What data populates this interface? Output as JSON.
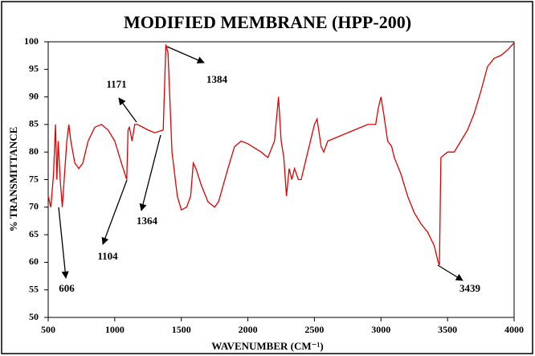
{
  "chart_data": {
    "type": "line",
    "title": "MODIFIED MEMBRANE (HPP-200)",
    "x_label": "WAVENUMBER (CM⁻¹)",
    "y_label": "% TRANSMITTANCE",
    "color": "#e00000",
    "x": [
      500,
      520,
      540,
      555,
      565,
      575,
      590,
      606,
      620,
      640,
      655,
      670,
      700,
      730,
      760,
      800,
      850,
      900,
      950,
      1000,
      1050,
      1090,
      1100,
      1110,
      1130,
      1150,
      1171,
      1250,
      1300,
      1364,
      1384,
      1400,
      1430,
      1470,
      1500,
      1540,
      1570,
      1590,
      1610,
      1650,
      1700,
      1750,
      1780,
      1850,
      1900,
      1950,
      2000,
      2100,
      2150,
      2200,
      2230,
      2250,
      2270,
      2290,
      2310,
      2330,
      2350,
      2380,
      2400,
      2450,
      2500,
      2520,
      2550,
      2570,
      2600,
      2700,
      2800,
      2900,
      2960,
      2980,
      3000,
      3020,
      3050,
      3080,
      3100,
      3150,
      3200,
      3250,
      3300,
      3350,
      3400,
      3430,
      3439,
      3450,
      3500,
      3550,
      3600,
      3650,
      3700,
      3750,
      3800,
      3850,
      3900,
      3950,
      4000
    ],
    "values": [
      72,
      70,
      76,
      85,
      75,
      82,
      75,
      70,
      75,
      82,
      85,
      82,
      78,
      77,
      78,
      82,
      84.5,
      85,
      84,
      82,
      78,
      75,
      84,
      84.5,
      82,
      85,
      85,
      84,
      83.5,
      84,
      99.5,
      98,
      80,
      72,
      69.5,
      70,
      72,
      78,
      77,
      74,
      71,
      70,
      71,
      77,
      81,
      82,
      81.5,
      80,
      79,
      82,
      90,
      82,
      79,
      72,
      77,
      75,
      77,
      75,
      75,
      80,
      85,
      86,
      81,
      80,
      82,
      83,
      84,
      85,
      85,
      88,
      90,
      87,
      82,
      81,
      79,
      76,
      72,
      69,
      67,
      65.5,
      63,
      60,
      59.5,
      79,
      80,
      80,
      82,
      84,
      87,
      91,
      95.5,
      97,
      97.5,
      98.5,
      99.8
    ],
    "xlim": [
      500,
      4000
    ],
    "xticks": [
      500,
      1000,
      1500,
      2000,
      2500,
      3000,
      3500,
      4000
    ],
    "ylim": [
      50,
      100
    ],
    "yticks": [
      50,
      55,
      60,
      65,
      70,
      75,
      80,
      85,
      90,
      95,
      100
    ],
    "grid": false,
    "annotations": [
      "606",
      "1104",
      "1171",
      "1364",
      "1384",
      "3439"
    ]
  }
}
